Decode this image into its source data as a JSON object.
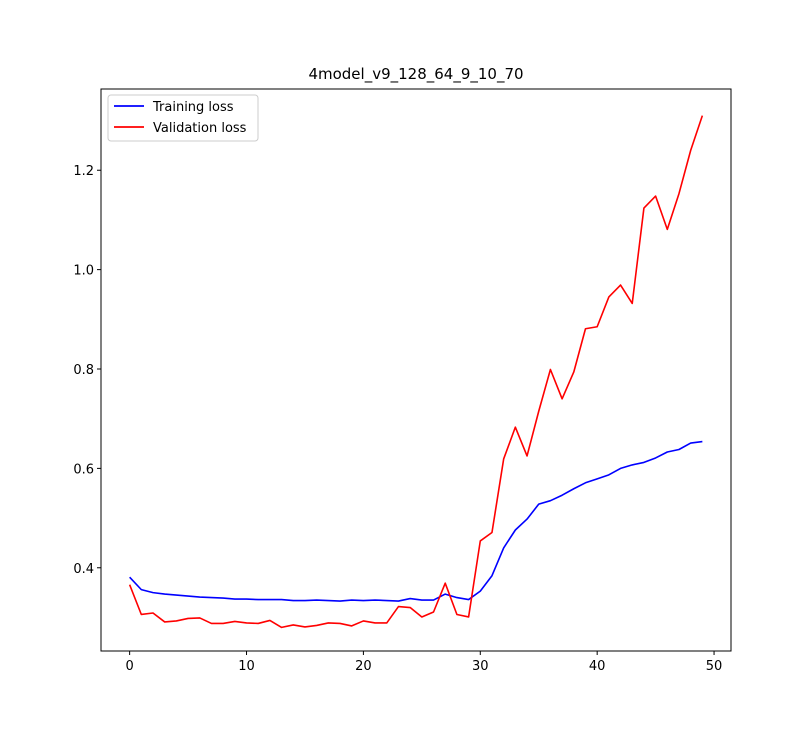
{
  "chart_data": {
    "type": "line",
    "title": "4model_v9_128_64_9_10_70",
    "xlabel": "",
    "ylabel": "",
    "xlim": [
      -2.45,
      51.45
    ],
    "ylim": [
      0.2325,
      1.3635
    ],
    "xticks": [
      "0",
      "10",
      "20",
      "30",
      "40",
      "50"
    ],
    "yticks": [
      "0.4",
      "0.6",
      "0.8",
      "1.0",
      "1.2"
    ],
    "legend_position": "upper left",
    "grid": false,
    "x": [
      0,
      1,
      2,
      3,
      4,
      5,
      6,
      7,
      8,
      9,
      10,
      11,
      12,
      13,
      14,
      15,
      16,
      17,
      18,
      19,
      20,
      21,
      22,
      23,
      24,
      25,
      26,
      27,
      28,
      29,
      30,
      31,
      32,
      33,
      34,
      35,
      36,
      37,
      38,
      39,
      40,
      41,
      42,
      43,
      44,
      45,
      46,
      47,
      48,
      49
    ],
    "series": [
      {
        "name": "Training loss",
        "color": "#0000ff",
        "values": [
          0.381,
          0.356,
          0.35,
          0.347,
          0.345,
          0.343,
          0.341,
          0.34,
          0.339,
          0.337,
          0.337,
          0.336,
          0.336,
          0.336,
          0.334,
          0.334,
          0.335,
          0.334,
          0.333,
          0.335,
          0.334,
          0.335,
          0.334,
          0.333,
          0.338,
          0.335,
          0.335,
          0.347,
          0.34,
          0.336,
          0.353,
          0.384,
          0.44,
          0.476,
          0.498,
          0.528,
          0.535,
          0.546,
          0.559,
          0.571,
          0.579,
          0.587,
          0.6,
          0.607,
          0.612,
          0.621,
          0.633,
          0.638,
          0.651,
          0.654
        ]
      },
      {
        "name": "Validation loss",
        "color": "#ff0000",
        "values": [
          0.366,
          0.306,
          0.309,
          0.291,
          0.293,
          0.298,
          0.299,
          0.288,
          0.288,
          0.292,
          0.289,
          0.288,
          0.294,
          0.28,
          0.285,
          0.281,
          0.284,
          0.289,
          0.288,
          0.283,
          0.293,
          0.289,
          0.289,
          0.322,
          0.32,
          0.301,
          0.311,
          0.369,
          0.306,
          0.301,
          0.454,
          0.471,
          0.619,
          0.683,
          0.625,
          0.715,
          0.799,
          0.74,
          0.794,
          0.881,
          0.885,
          0.945,
          0.969,
          0.932,
          1.124,
          1.148,
          1.081,
          1.153,
          1.24,
          1.31
        ]
      }
    ]
  }
}
